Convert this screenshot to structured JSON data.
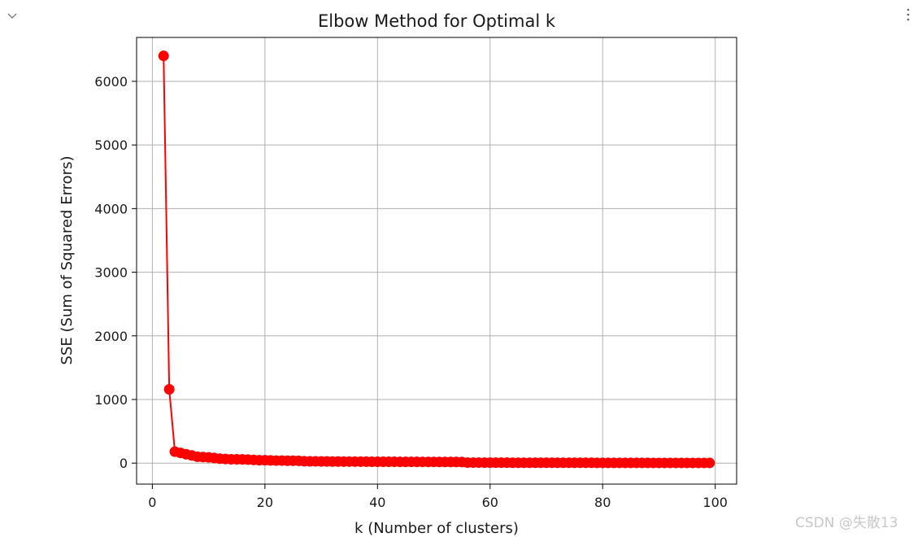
{
  "toolbar": {
    "collapse_icon": "chevron-down-icon",
    "more_icon": "vertical-ellipsis-icon"
  },
  "watermark": "CSDN @失散13",
  "colors": {
    "series": "#ff0000",
    "grid": "#b0b0b0",
    "axis": "#000000",
    "text": "#1a1a1a",
    "icon": "#777777",
    "watermark": "#c8c8c8"
  },
  "chart_data": {
    "type": "line",
    "title": "Elbow Method for Optimal k",
    "xlabel": "k (Number of clusters)",
    "ylabel": "SSE (Sum of Squared Errors)",
    "xlim": [
      -2.8,
      103.8
    ],
    "ylim": [
      -330,
      6690
    ],
    "xticks": [
      0,
      20,
      40,
      60,
      80,
      100
    ],
    "yticks": [
      0,
      1000,
      2000,
      3000,
      4000,
      5000,
      6000
    ],
    "grid": true,
    "marker": "circle",
    "series": [
      {
        "x": [
          2,
          3,
          4,
          5,
          6,
          7,
          8,
          9,
          10,
          11,
          12,
          13,
          14,
          15,
          16,
          17,
          18,
          19,
          20,
          21,
          22,
          23,
          24,
          25,
          26,
          27,
          28,
          29,
          30,
          31,
          32,
          33,
          34,
          35,
          36,
          37,
          38,
          39,
          40,
          41,
          42,
          43,
          44,
          45,
          46,
          47,
          48,
          49,
          50,
          51,
          52,
          53,
          54,
          55,
          56,
          57,
          58,
          59,
          60,
          61,
          62,
          63,
          64,
          65,
          66,
          67,
          68,
          69,
          70,
          71,
          72,
          73,
          74,
          75,
          76,
          77,
          78,
          79,
          80,
          81,
          82,
          83,
          84,
          85,
          86,
          87,
          88,
          89,
          90,
          91,
          92,
          93,
          94,
          95,
          96,
          97,
          98,
          99
        ],
        "values": [
          6400,
          1160,
          180,
          160,
          140,
          120,
          100,
          95,
          90,
          80,
          70,
          65,
          60,
          60,
          58,
          55,
          50,
          45,
          45,
          42,
          40,
          40,
          38,
          38,
          36,
          30,
          28,
          28,
          26,
          26,
          25,
          25,
          24,
          24,
          24,
          23,
          23,
          22,
          22,
          22,
          21,
          21,
          20,
          20,
          20,
          20,
          19,
          19,
          19,
          18,
          18,
          18,
          18,
          17,
          8,
          8,
          8,
          7,
          7,
          7,
          7,
          7,
          6,
          6,
          6,
          6,
          6,
          6,
          5,
          5,
          5,
          5,
          5,
          5,
          5,
          5,
          5,
          4,
          4,
          4,
          4,
          4,
          4,
          4,
          4,
          4,
          4,
          3,
          3,
          3,
          3,
          3,
          3,
          3,
          3,
          3,
          3,
          3
        ]
      }
    ]
  }
}
